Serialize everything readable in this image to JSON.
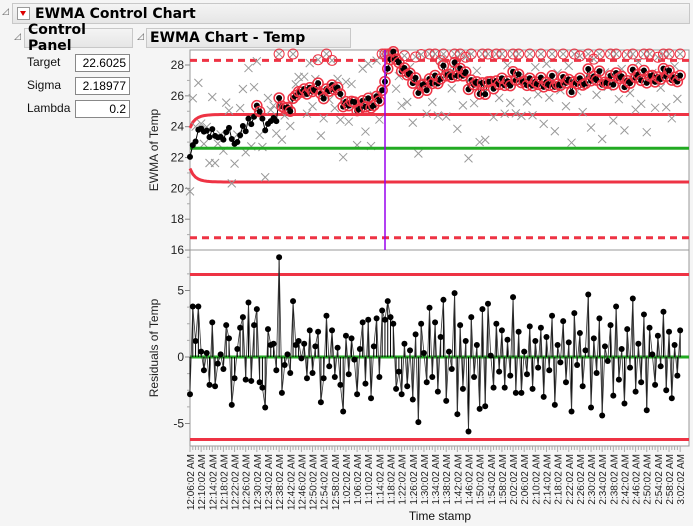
{
  "title": "EWMA Control Chart",
  "control_panel": {
    "title": "Control Panel",
    "fields": [
      {
        "label": "Target",
        "value": "22.6025"
      },
      {
        "label": "Sigma",
        "value": "2.18977"
      },
      {
        "label": "Lambda",
        "value": "0.2"
      }
    ]
  },
  "chart_title": "EWMA Chart - Temp",
  "colors": {
    "center": "#22aa22",
    "limit": "#ee3344",
    "points": "#000000",
    "raw": "#999999",
    "cursor": "#9900ee"
  },
  "chart_data": [
    {
      "type": "line",
      "ylabel": "EWMA of Temp",
      "yticks": [
        16,
        18,
        20,
        22,
        24,
        26,
        28
      ],
      "ylim": [
        16,
        29
      ],
      "center": 22.6025,
      "lambda": 0.2,
      "sigma": 2.18977,
      "ewma_limits": [
        20.41,
        24.79
      ],
      "outer_limits_dashed": [
        16.8,
        28.3
      ],
      "note_series": "EWMA points (black) and Temp observations (gray x) derived from residuals"
    },
    {
      "type": "line",
      "ylabel": "Residuals of Temp",
      "yticks": [
        -5,
        0,
        5
      ],
      "ylim": [
        -6.6,
        8
      ],
      "center": 0,
      "limits": [
        -6.2,
        6.2
      ],
      "residuals": [
        -2.8,
        3.8,
        1.2,
        3.8,
        0.4,
        -1.0,
        0.3,
        -2.1,
        2.6,
        -2.2,
        -0.5,
        0.2,
        -0.9,
        2.4,
        1.4,
        -3.6,
        -1.6,
        0.6,
        2.2,
        3.0,
        -1.7,
        4.1,
        -1.8,
        2.4,
        3.6,
        -1.9,
        -2.3,
        -3.8,
        2.1,
        0.9,
        1.0,
        -1.0,
        7.5,
        -2.7,
        -0.6,
        0.2,
        -1.2,
        4.2,
        0.9,
        1.2,
        -0.1,
        1.0,
        -1.6,
        2.0,
        -1.2,
        0.8,
        1.9,
        -3.4,
        -1.6,
        3.1,
        -0.7,
        2.0,
        -1.5,
        0.7,
        -2.1,
        -4.1,
        1.6,
        -1.3,
        1.4,
        -0.2,
        -2.8,
        0.6,
        2.6,
        -2.0,
        2.8,
        -3.1,
        0.8,
        2.9,
        -1.5,
        3.5,
        2.8,
        4.2,
        3.0,
        2.5,
        -2.4,
        -1.1,
        -2.8,
        1.0,
        -2.2,
        0.5,
        -3.2,
        1.7,
        -4.9,
        2.5,
        0.3,
        -1.9,
        3.7,
        -1.5,
        2.6,
        -2.6,
        1.5,
        4.3,
        -3.3,
        0.4,
        -0.9,
        4.8,
        -4.3,
        2.4,
        -2.4,
        1.2,
        -5.6,
        3.0,
        -1.5,
        0.9,
        -3.9,
        3.6,
        -3.7,
        4.0,
        0.1,
        -2.3,
        2.5,
        -1.1,
        2.0,
        -2.3,
        1.3,
        -1.4,
        4.5,
        -2.7,
        1.9,
        -2.7,
        0.4,
        -1.3,
        2.3,
        -2.4,
        1.2,
        -0.8,
        2.2,
        -3.0,
        1.5,
        -1.0,
        3.1,
        -3.6,
        0.9,
        -0.4,
        2.7,
        -1.9,
        1.1,
        -4.1,
        3.3,
        -0.6,
        1.8,
        -2.2,
        0.5,
        4.7,
        -3.8,
        1.4,
        -1.2,
        2.9,
        -4.4,
        0.8,
        -0.3,
        2.4,
        -2.9,
        3.8,
        -1.7,
        0.6,
        -3.5,
        2.1,
        -0.8,
        4.4,
        -2.6,
        1.0,
        -1.9,
        3.2,
        -4.0,
        2.2,
        0.2,
        -2.1,
        1.6,
        -0.7,
        3.4,
        -2.5,
        1.9,
        -3.1,
        0.9,
        -1.4,
        2.0
      ]
    }
  ],
  "xaxis": {
    "label": "Time stamp",
    "ticks": [
      "12:06:02 AM",
      "12:10:02 AM",
      "12:14:02 AM",
      "12:18:02 AM",
      "12:22:02 AM",
      "12:26:02 AM",
      "12:30:02 AM",
      "12:34:02 AM",
      "12:38:02 AM",
      "12:42:02 AM",
      "12:46:02 AM",
      "12:50:02 AM",
      "12:54:02 AM",
      "12:58:02 AM",
      "1:02:02 AM",
      "1:06:02 AM",
      "1:10:02 AM",
      "1:14:02 AM",
      "1:18:02 AM",
      "1:22:02 AM",
      "1:26:02 AM",
      "1:30:02 AM",
      "1:34:02 AM",
      "1:38:02 AM",
      "1:42:02 AM",
      "1:46:02 AM",
      "1:50:02 AM",
      "1:54:02 AM",
      "1:58:02 AM",
      "2:02:02 AM",
      "2:06:02 AM",
      "2:10:02 AM",
      "2:14:02 AM",
      "2:18:02 AM",
      "2:22:02 AM",
      "2:26:02 AM",
      "2:30:02 AM",
      "2:34:02 AM",
      "2:38:02 AM",
      "2:42:02 AM",
      "2:46:02 AM",
      "2:50:02 AM",
      "2:54:02 AM",
      "2:58:02 AM",
      "3:02:02 AM"
    ]
  }
}
